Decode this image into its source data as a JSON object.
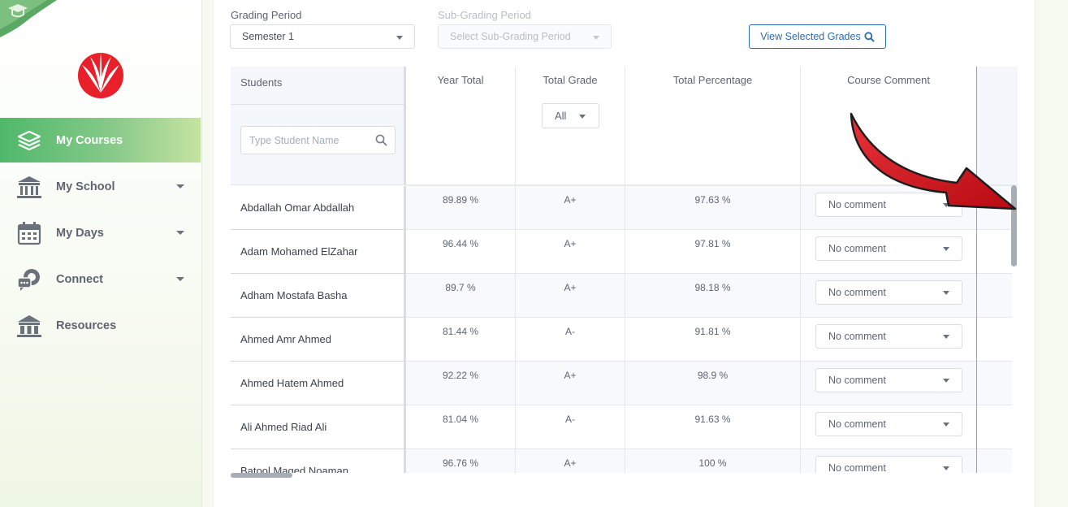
{
  "sidebar": {
    "items": [
      {
        "label": "My Courses",
        "active": true,
        "icon": "books-stack-icon"
      },
      {
        "label": "My School",
        "active": false,
        "icon": "school-building-icon",
        "has_caret": true
      },
      {
        "label": "My Days",
        "active": false,
        "icon": "calendar-icon",
        "has_caret": true
      },
      {
        "label": "Connect",
        "active": false,
        "icon": "chat-bubbles-icon",
        "has_caret": true
      },
      {
        "label": "Resources",
        "active": false,
        "icon": "library-building-icon"
      }
    ]
  },
  "filters": {
    "grading_period_label": "Grading Period",
    "grading_period_value": "Semester 1",
    "sub_grading_period_label": "Sub-Grading Period",
    "sub_grading_period_placeholder": "Select Sub-Grading Period",
    "view_button_label": "View Selected Grades"
  },
  "table": {
    "students_header": "Students",
    "search_placeholder": "Type Student Name",
    "columns": {
      "year_total": "Year Total",
      "total_grade": "Total Grade",
      "total_percentage": "Total Percentage",
      "course_comment": "Course Comment"
    },
    "grade_filter_value": "All",
    "rows": [
      {
        "student": "Abdallah Omar Abdallah",
        "year_total": "89.89 %",
        "grade": "A+",
        "percentage": "97.63 %",
        "comment": "No comment"
      },
      {
        "student": "Adam Mohamed ElZahar",
        "year_total": "96.44 %",
        "grade": "A+",
        "percentage": "97.81 %",
        "comment": "No comment"
      },
      {
        "student": "Adham Mostafa Basha",
        "year_total": "89.7 %",
        "grade": "A+",
        "percentage": "98.18 %",
        "comment": "No comment"
      },
      {
        "student": "Ahmed Amr Ahmed",
        "year_total": "81.44 %",
        "grade": "A-",
        "percentage": "91.81 %",
        "comment": "No comment"
      },
      {
        "student": "Ahmed Hatem Ahmed",
        "year_total": "92.22 %",
        "grade": "A+",
        "percentage": "98.9 %",
        "comment": "No comment"
      },
      {
        "student": "Ali Ahmed Riad Ali",
        "year_total": "81.04 %",
        "grade": "A-",
        "percentage": "91.63 %",
        "comment": "No comment"
      },
      {
        "student": "Batool Maged Noaman",
        "year_total": "96.76 %",
        "grade": "A+",
        "percentage": "100 %",
        "comment": "No comment"
      }
    ]
  },
  "colors": {
    "accent_green": "#4fb86a",
    "link_blue": "#2b6cb0",
    "brand_red": "#e8202a",
    "annotation_arrow": "#d0121b"
  }
}
